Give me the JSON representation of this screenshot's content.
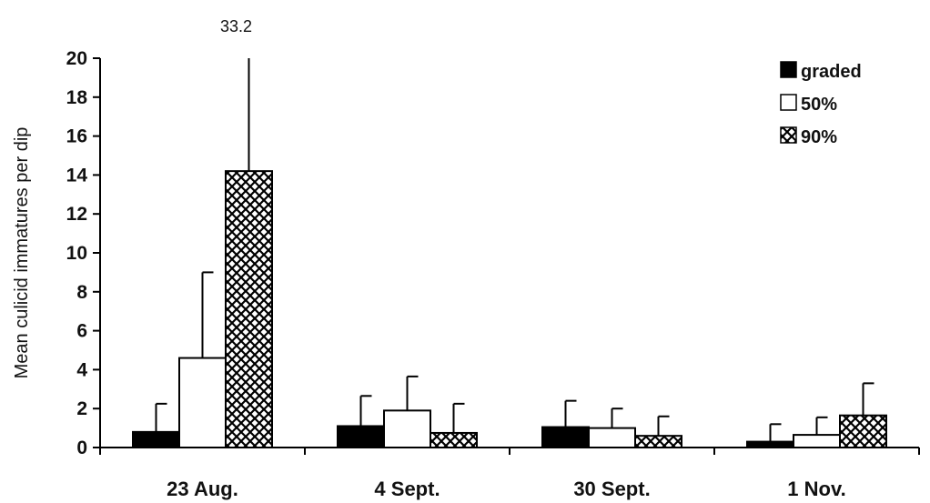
{
  "chart_data": {
    "type": "bar",
    "title": "",
    "xlabel": "",
    "ylabel": "Mean culicid immatures per dip",
    "ylim": [
      0,
      20
    ],
    "yticks": [
      "0",
      "2",
      "4",
      "6",
      "8",
      "10",
      "12",
      "14",
      "16",
      "18",
      "20"
    ],
    "categories": [
      "23 Aug.",
      "4 Sept.",
      "30 Sept.",
      "1 Nov."
    ],
    "series": [
      {
        "name": "graded",
        "values": [
          0.8,
          1.1,
          1.05,
          0.3
        ],
        "error_upper": [
          2.25,
          2.65,
          2.4,
          1.2
        ],
        "fill": "solid",
        "color": "#000000"
      },
      {
        "name": "50%",
        "values": [
          4.6,
          1.9,
          1.0,
          0.65
        ],
        "error_upper": [
          9.0,
          3.65,
          2.0,
          1.55
        ],
        "fill": "empty",
        "color": "#ffffff"
      },
      {
        "name": "90%",
        "values": [
          14.2,
          0.75,
          0.6,
          1.65
        ],
        "error_upper": [
          33.2,
          2.25,
          1.6,
          3.3
        ],
        "fill": "crosshatch",
        "color": "#000000"
      }
    ],
    "annotations": [
      {
        "text": "33.2",
        "category": "23 Aug.",
        "series": "90%"
      }
    ],
    "grid": false,
    "legend_position": "top-right"
  }
}
